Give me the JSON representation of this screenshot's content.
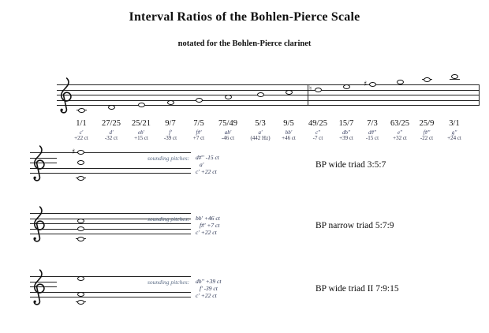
{
  "title": "Interval Ratios of the Bohlen-Pierce Scale",
  "subtitle": "notated for the Bohlen-Pierce clarinet",
  "scale": {
    "degrees": [
      {
        "ratio": "1/1",
        "sounding": "c'",
        "cents": "+22 ct",
        "written": "c'",
        "accidental": ""
      },
      {
        "ratio": "27/25",
        "sounding": "d'",
        "cents": "-32 ct",
        "written": "d'",
        "accidental": ""
      },
      {
        "ratio": "25/21",
        "sounding": "eb'",
        "cents": "+15 ct",
        "written": "e'",
        "accidental": ""
      },
      {
        "ratio": "9/7",
        "sounding": "f'",
        "cents": "-39 ct",
        "written": "f'",
        "accidental": ""
      },
      {
        "ratio": "7/5",
        "sounding": "f#'",
        "cents": "+7 ct",
        "written": "g'",
        "accidental": ""
      },
      {
        "ratio": "75/49",
        "sounding": "ab'",
        "cents": "-46 ct",
        "written": "a'",
        "accidental": ""
      },
      {
        "ratio": "5/3",
        "sounding": "a'",
        "cents": "(442 Hz)",
        "written": "b'",
        "accidental": ""
      },
      {
        "ratio": "9/5",
        "sounding": "bb'",
        "cents": "+46 ct",
        "written": "c''",
        "accidental": ""
      },
      {
        "ratio": "49/25",
        "sounding": "c''",
        "cents": "-7 ct",
        "written": "d''",
        "accidental": "natural"
      },
      {
        "ratio": "15/7",
        "sounding": "db''",
        "cents": "+39 ct",
        "written": "e''",
        "accidental": ""
      },
      {
        "ratio": "7/3",
        "sounding": "d#''",
        "cents": "-15 ct",
        "written": "f''",
        "accidental": "sharp"
      },
      {
        "ratio": "63/25",
        "sounding": "e''",
        "cents": "+32 ct",
        "written": "g''",
        "accidental": ""
      },
      {
        "ratio": "25/9",
        "sounding": "f#''",
        "cents": "-22 ct",
        "written": "a''",
        "accidental": ""
      },
      {
        "ratio": "3/1",
        "sounding": "g''",
        "cents": "+24 ct",
        "written": "b''",
        "accidental": ""
      }
    ]
  },
  "triads": [
    {
      "name": "BP wide triad 3:5:7",
      "label": "sounding pitches:",
      "sounding": [
        "d#'' -15 ct",
        "a'",
        "c' +22 ct"
      ],
      "written": [
        {
          "note": "c'",
          "acc": ""
        },
        {
          "note": "b'",
          "acc": ""
        },
        {
          "note": "f''",
          "acc": "sharp"
        }
      ],
      "masked": true
    },
    {
      "name": "BP narrow triad 5:7:9",
      "label": "sounding pitches:",
      "sounding": [
        "bb' +46 ct",
        "f#' +7 ct",
        "c' +22 ct"
      ],
      "written": [
        {
          "note": "c'",
          "acc": ""
        },
        {
          "note": "g'",
          "acc": ""
        },
        {
          "note": "c''",
          "acc": ""
        }
      ],
      "masked": false
    },
    {
      "name": "BP wide triad II 7:9:15",
      "label": "sounding pitches:",
      "sounding": [
        "db'' +39 ct",
        "f' -39 ct",
        "c' +22 ct"
      ],
      "written": [
        {
          "note": "c'",
          "acc": ""
        },
        {
          "note": "f'",
          "acc": ""
        },
        {
          "note": "e''",
          "acc": ""
        }
      ],
      "masked": true
    }
  ]
}
